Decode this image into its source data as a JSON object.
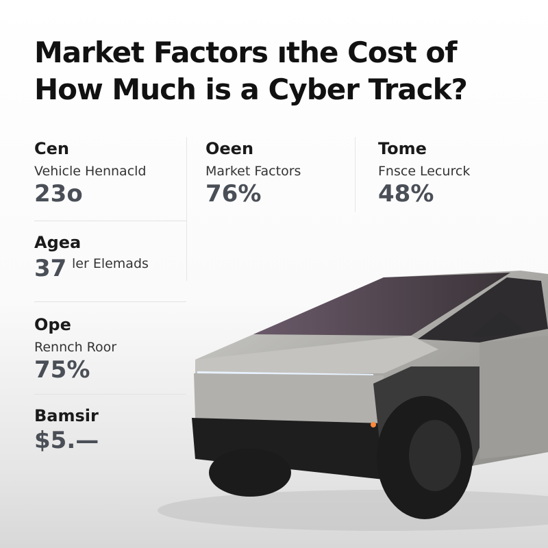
{
  "title": {
    "lines": [
      "Market Factors ıthe Cost of",
      "How Much is a Cyber Track?"
    ]
  },
  "stats": [
    {
      "heading": "Cen",
      "label": "Vehicle Hennacld",
      "value": "23o"
    },
    {
      "heading": "Oeen",
      "label": "Market Factors",
      "value": "76%"
    },
    {
      "heading": "Tome",
      "label": "Fnsce Lecurck",
      "value": "48%"
    },
    {
      "heading": "Agea",
      "label": "ler Elemads",
      "value": "37"
    },
    {
      "heading": "Ope",
      "label": "Rennch Roor",
      "value": "75%"
    },
    {
      "heading": "Bamsir",
      "value": "$5.—"
    }
  ]
}
